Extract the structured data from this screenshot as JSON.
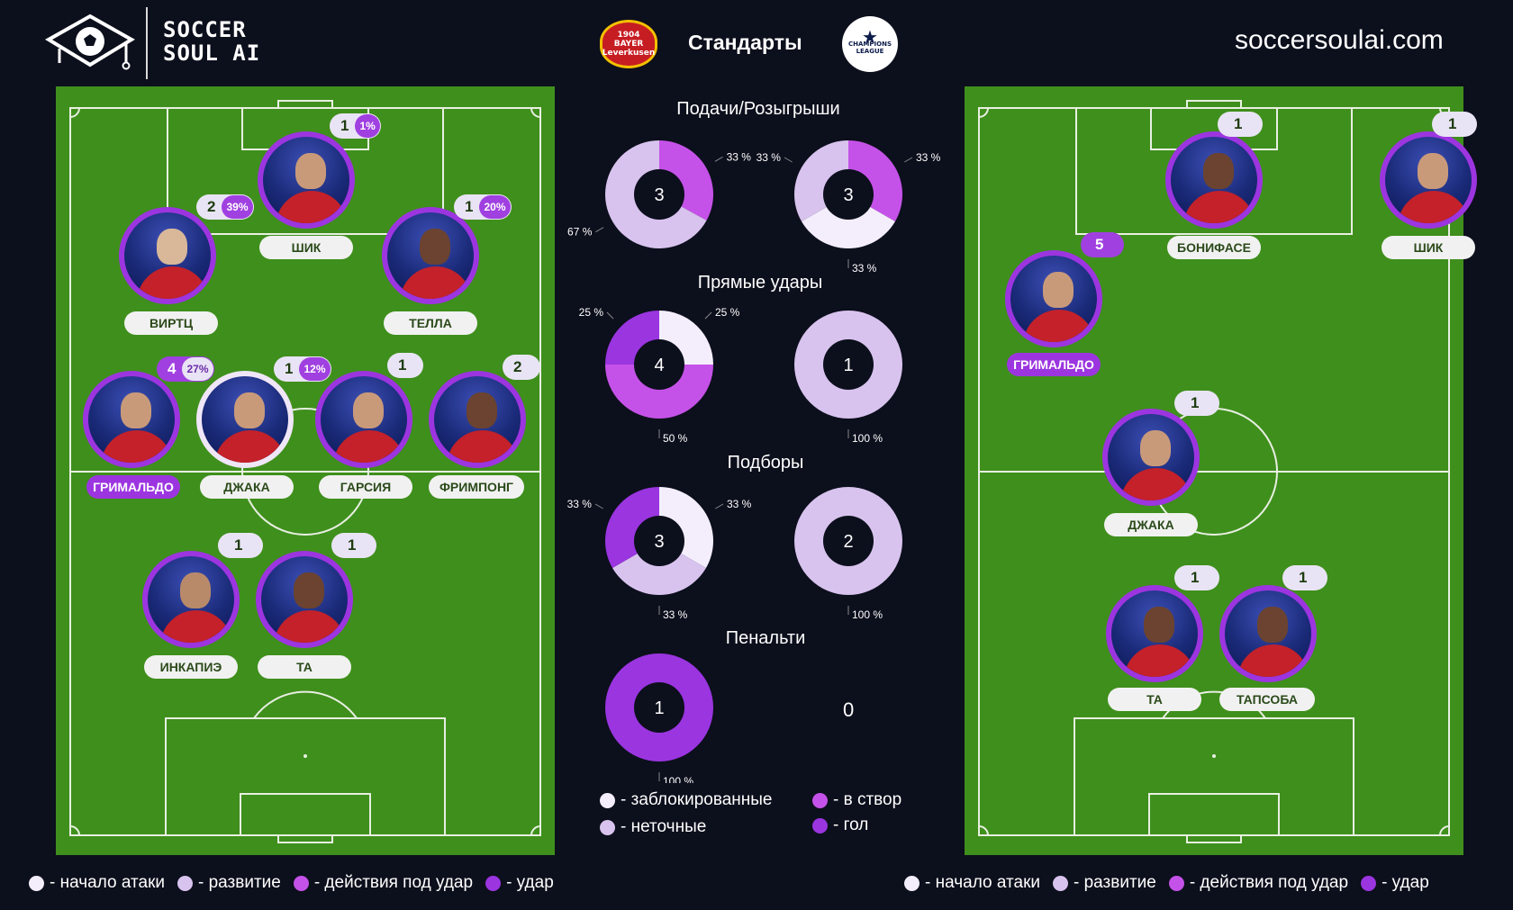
{
  "header": {
    "brand_line1": "SOCCER",
    "brand_line2": "SOUL AI",
    "title": "Стандарты",
    "site": "soccersoulai.com",
    "crest_text": "BAYER Leverkusen",
    "crest_year": "1904",
    "ucl_text": "CHAMPIONS LEAGUE"
  },
  "colors": {
    "start_attack": "#f4eefc",
    "development": "#d8c3ee",
    "pre_shot": "#c552e8",
    "shot": "#9a35e0",
    "pitch": "#3f8f1c"
  },
  "sections": {
    "crosses": "Подачи/Розыгрыши",
    "direct": "Прямые удары",
    "rebounds": "Подборы",
    "penalties": "Пенальти"
  },
  "chart_data": [
    {
      "type": "pie",
      "section": "Подачи/Розыгрыши",
      "side": "left",
      "total": "3",
      "slices": [
        {
          "category": "в створ",
          "value": 33,
          "label": "33 %"
        },
        {
          "category": "неточные",
          "value": 67,
          "label": "67 %"
        }
      ]
    },
    {
      "type": "pie",
      "section": "Подачи/Розыгрыши",
      "side": "right",
      "total": "3",
      "slices": [
        {
          "category": "в створ",
          "value": 33,
          "label": "33 %"
        },
        {
          "category": "заблокированные",
          "value": 33,
          "label": "33 %"
        },
        {
          "category": "неточные",
          "value": 33,
          "label": "33 %"
        }
      ]
    },
    {
      "type": "pie",
      "section": "Прямые удары",
      "side": "left",
      "total": "4",
      "slices": [
        {
          "category": "заблокированные",
          "value": 25,
          "label": "25 %"
        },
        {
          "category": "в створ",
          "value": 50,
          "label": "50 %"
        },
        {
          "category": "гол",
          "value": 25,
          "label": "25 %"
        }
      ]
    },
    {
      "type": "pie",
      "section": "Прямые удары",
      "side": "right",
      "total": "1",
      "slices": [
        {
          "category": "неточные",
          "value": 100,
          "label": "100 %"
        }
      ]
    },
    {
      "type": "pie",
      "section": "Подборы",
      "side": "left",
      "total": "3",
      "slices": [
        {
          "category": "заблокированные",
          "value": 33,
          "label": "33 %"
        },
        {
          "category": "неточные",
          "value": 33,
          "label": "33 %"
        },
        {
          "category": "гол",
          "value": 33,
          "label": "33 %"
        }
      ]
    },
    {
      "type": "pie",
      "section": "Подборы",
      "side": "right",
      "total": "2",
      "slices": [
        {
          "category": "неточные",
          "value": 100,
          "label": "100 %"
        }
      ]
    },
    {
      "type": "pie",
      "section": "Пенальти",
      "side": "left",
      "total": "1",
      "slices": [
        {
          "category": "гол",
          "value": 100,
          "label": "100 %"
        }
      ]
    }
  ],
  "penalty_right_value": "0",
  "center_legend": [
    {
      "label": "- заблокированные",
      "color": "#f4eefc"
    },
    {
      "label": "- в створ",
      "color": "#c552e8"
    },
    {
      "label": "- неточные",
      "color": "#d8c3ee"
    },
    {
      "label": "- гол",
      "color": "#9a35e0"
    }
  ],
  "bottom_legend": [
    {
      "label": "- начало атаки",
      "color": "#f4eefc"
    },
    {
      "label": "- развитие",
      "color": "#d8c3ee"
    },
    {
      "label": "- действия под удар",
      "color": "#c552e8"
    },
    {
      "label": "- удар",
      "color": "#9a35e0"
    }
  ],
  "left_players": [
    {
      "name": "ШИК",
      "count": "1",
      "pct": "1%"
    },
    {
      "name": "ВИРТЦ",
      "count": "2",
      "pct": "39%"
    },
    {
      "name": "ТЕЛЛА",
      "count": "1",
      "pct": "20%"
    },
    {
      "name": "ГРИМАЛЬДО",
      "count": "4",
      "pct": "27%"
    },
    {
      "name": "ДЖАКА",
      "count": "1",
      "pct": "12%"
    },
    {
      "name": "ГАРСИЯ",
      "count": "1",
      "pct": ""
    },
    {
      "name": "ФРИМПОНГ",
      "count": "2",
      "pct": ""
    },
    {
      "name": "ИНКАПИЭ",
      "count": "1",
      "pct": ""
    },
    {
      "name": "ТА",
      "count": "1",
      "pct": ""
    }
  ],
  "right_players": [
    {
      "name": "БОНИФАСЕ",
      "count": "1"
    },
    {
      "name": "ШИК",
      "count": "1"
    },
    {
      "name": "ГРИМАЛЬДО",
      "count": "5"
    },
    {
      "name": "ДЖАКА",
      "count": "1"
    },
    {
      "name": "ТА",
      "count": "1"
    },
    {
      "name": "ТАПСОБА",
      "count": "1"
    }
  ]
}
